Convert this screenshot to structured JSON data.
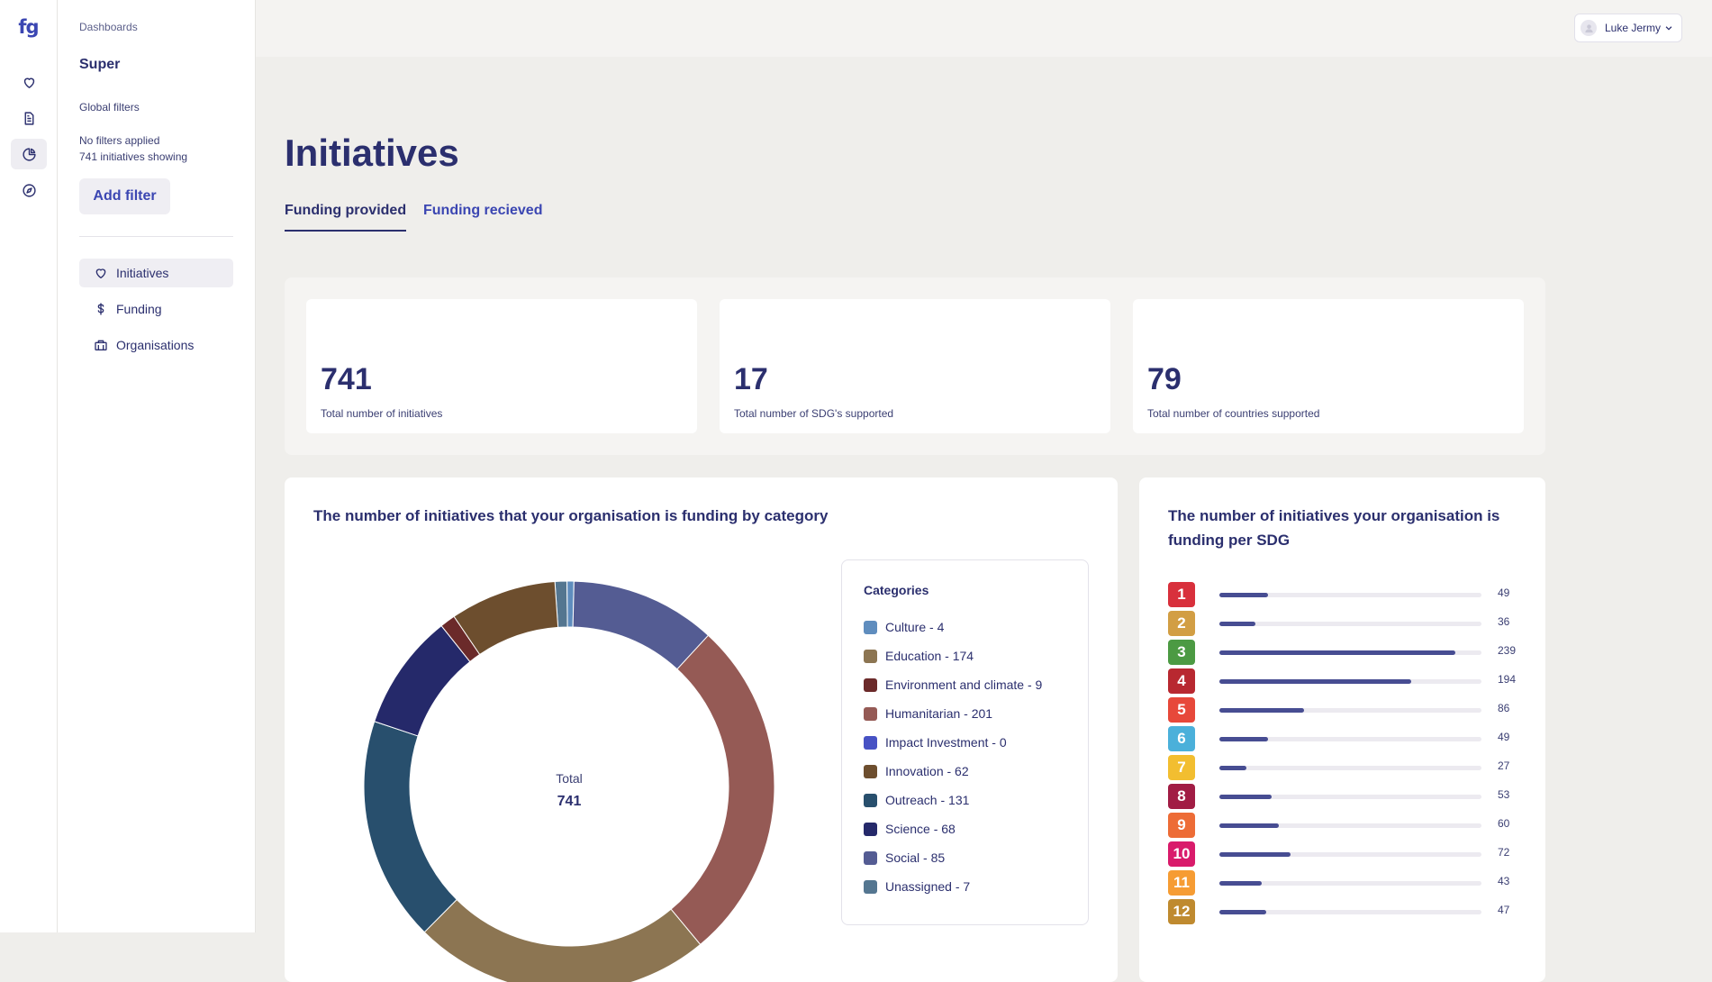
{
  "rail": {
    "logo": "fg",
    "items": [
      {
        "icon": "heart-icon"
      },
      {
        "icon": "document-icon"
      },
      {
        "icon": "pie-chart-icon",
        "active": true
      },
      {
        "icon": "compass-icon"
      }
    ]
  },
  "sidebar": {
    "breadcrumb": "Dashboards",
    "title": "Super",
    "global_filters_label": "Global filters",
    "filters_status": "No filters applied",
    "showing_text": "741 initiatives showing",
    "add_filter_label": "Add filter",
    "nav": [
      {
        "label": "Initiatives",
        "icon": "heart-icon",
        "active": true
      },
      {
        "label": "Funding",
        "icon": "dollar-icon"
      },
      {
        "label": "Organisations",
        "icon": "building-icon"
      }
    ]
  },
  "header": {
    "user_name": "Luke Jermy"
  },
  "main": {
    "title": "Initiatives",
    "tabs": [
      {
        "label": "Funding provided",
        "active": true
      },
      {
        "label": "Funding recieved",
        "active": false
      }
    ],
    "stats": [
      {
        "value": "741",
        "label": "Total number of initiatives"
      },
      {
        "value": "17",
        "label": "Total number of SDG's supported"
      },
      {
        "value": "79",
        "label": "Total number of countries supported"
      }
    ]
  },
  "category_card": {
    "title": "The number of initiatives that your organisation is funding by category",
    "center_label": "Total",
    "center_value": "741",
    "legend_title": "Categories"
  },
  "sdg_card": {
    "title_line1": "The number of initiatives your organisation is",
    "title_line2": "funding per SDG"
  },
  "chart_data": [
    {
      "type": "pie",
      "title": "The number of initiatives that your organisation is funding by category",
      "categories": [
        "Culture",
        "Education",
        "Environment and climate",
        "Humanitarian",
        "Impact Investment",
        "Innovation",
        "Outreach",
        "Science",
        "Social",
        "Unassigned"
      ],
      "values": [
        4,
        174,
        9,
        201,
        0,
        62,
        131,
        68,
        85,
        7
      ],
      "legend_labels": [
        "Culture - 4",
        "Education - 174",
        "Environment and climate - 9",
        "Humanitarian - 201",
        "Impact Investment - 0",
        "Innovation - 62",
        "Outreach - 131",
        "Science - 68",
        "Social - 85",
        "Unassigned - 7"
      ],
      "colors": [
        "#5f8dbe",
        "#8c7552",
        "#6b2a2a",
        "#955a55",
        "#4752c4",
        "#6d4e2e",
        "#284f6d",
        "#25296a",
        "#545c93",
        "#547690"
      ],
      "slice_order": [
        "Unassigned",
        "Culture",
        "Social",
        "Humanitarian",
        "Education",
        "Outreach",
        "Science",
        "Environment and climate",
        "Innovation"
      ],
      "legend_position": "right",
      "total": 741
    },
    {
      "type": "bar",
      "title": "The number of initiatives your organisation is funding per SDG",
      "categories": [
        "1",
        "2",
        "3",
        "4",
        "5",
        "6",
        "7",
        "8",
        "9",
        "10",
        "11",
        "12"
      ],
      "values": [
        49,
        36,
        239,
        194,
        86,
        49,
        27,
        53,
        60,
        72,
        43,
        47
      ],
      "xlim": [
        0,
        265
      ],
      "badge_colors": [
        "#d8303c",
        "#d29e44",
        "#4c9a43",
        "#b82830",
        "#e7483a",
        "#4bb0da",
        "#f2be30",
        "#a11c44",
        "#ed6c36",
        "#d91b6b",
        "#f69c33",
        "#bf8a2f"
      ]
    }
  ]
}
